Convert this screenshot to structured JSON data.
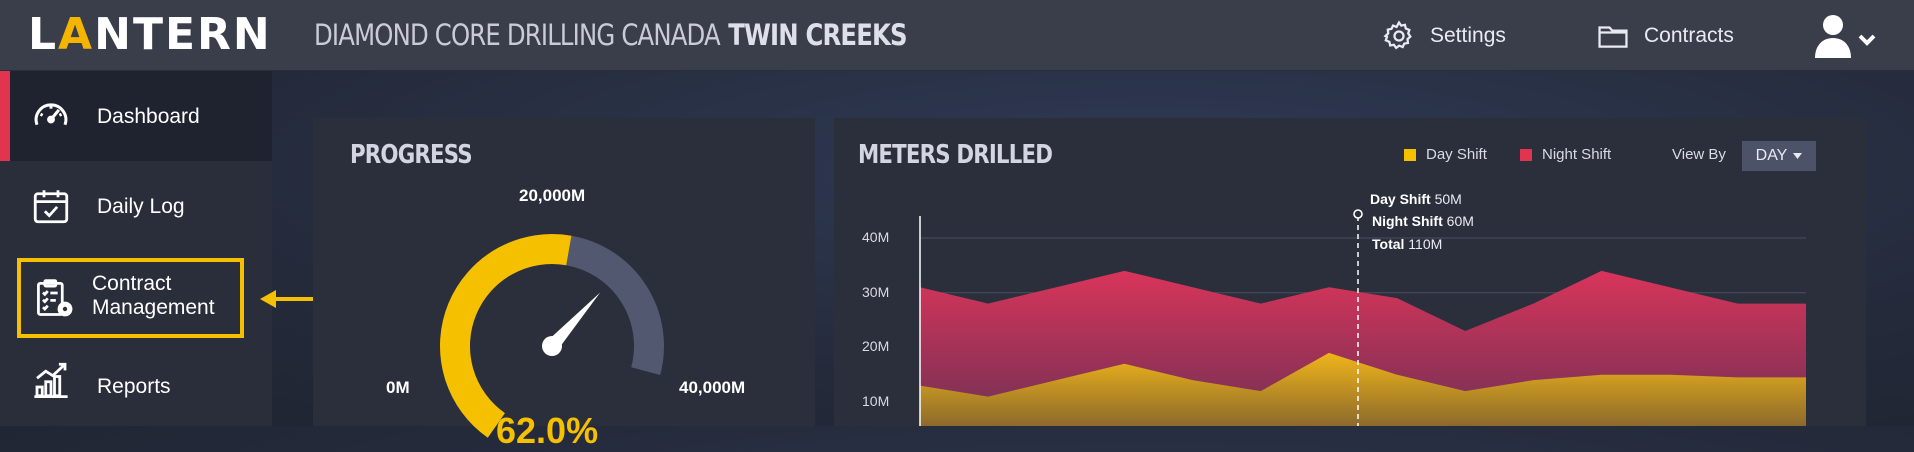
{
  "header": {
    "logo": "LANTERN",
    "company": "DIAMOND CORE DRILLING CANADA",
    "site": "TWIN CREEKS",
    "settings_label": "Settings",
    "contracts_label": "Contracts"
  },
  "sidebar": {
    "items": [
      {
        "label": "Dashboard",
        "icon": "speedometer-icon",
        "active": true
      },
      {
        "label": "Daily Log",
        "icon": "calendar-check-icon"
      },
      {
        "label": "Contract Management",
        "icon": "clipboard-gear-icon"
      },
      {
        "label": "Reports",
        "icon": "bar-chart-icon"
      }
    ],
    "contract_line1": "Contract",
    "contract_line2": "Management"
  },
  "progress": {
    "title": "PROGRESS",
    "min_label": "0M",
    "mid_label": "20,000M",
    "max_label": "40,000M",
    "fraction": 0.62,
    "percent_text": "62.0%"
  },
  "meters": {
    "title": "METERS DRILLED",
    "legend_day": "Day Shift",
    "legend_night": "Night Shift",
    "view_by_label": "View By",
    "view_by_value": "DAY",
    "tooltip": {
      "day_label": "Day Shift",
      "day_value": "50M",
      "night_label": "Night Shift",
      "night_value": "60M",
      "total_label": "Total",
      "total_value": "110M"
    },
    "colors": {
      "day": "#f5c000",
      "night": "#e0344f"
    }
  },
  "chart_data": {
    "type": "area",
    "ylim": [
      0,
      45
    ],
    "ytick_labels": [
      "40M",
      "30M",
      "20M",
      "10M"
    ],
    "yticks": [
      40,
      30,
      20,
      10
    ],
    "series": [
      {
        "name": "Day Shift",
        "values": [
          13,
          11,
          14,
          17,
          14,
          12,
          19,
          15,
          12,
          14,
          15,
          15,
          14.5,
          14.5
        ]
      },
      {
        "name": "Night Shift",
        "values": [
          31,
          28,
          31,
          34,
          31,
          28,
          31,
          29,
          23,
          28,
          34,
          31,
          28,
          28
        ]
      }
    ],
    "total_series_is_top": true
  }
}
